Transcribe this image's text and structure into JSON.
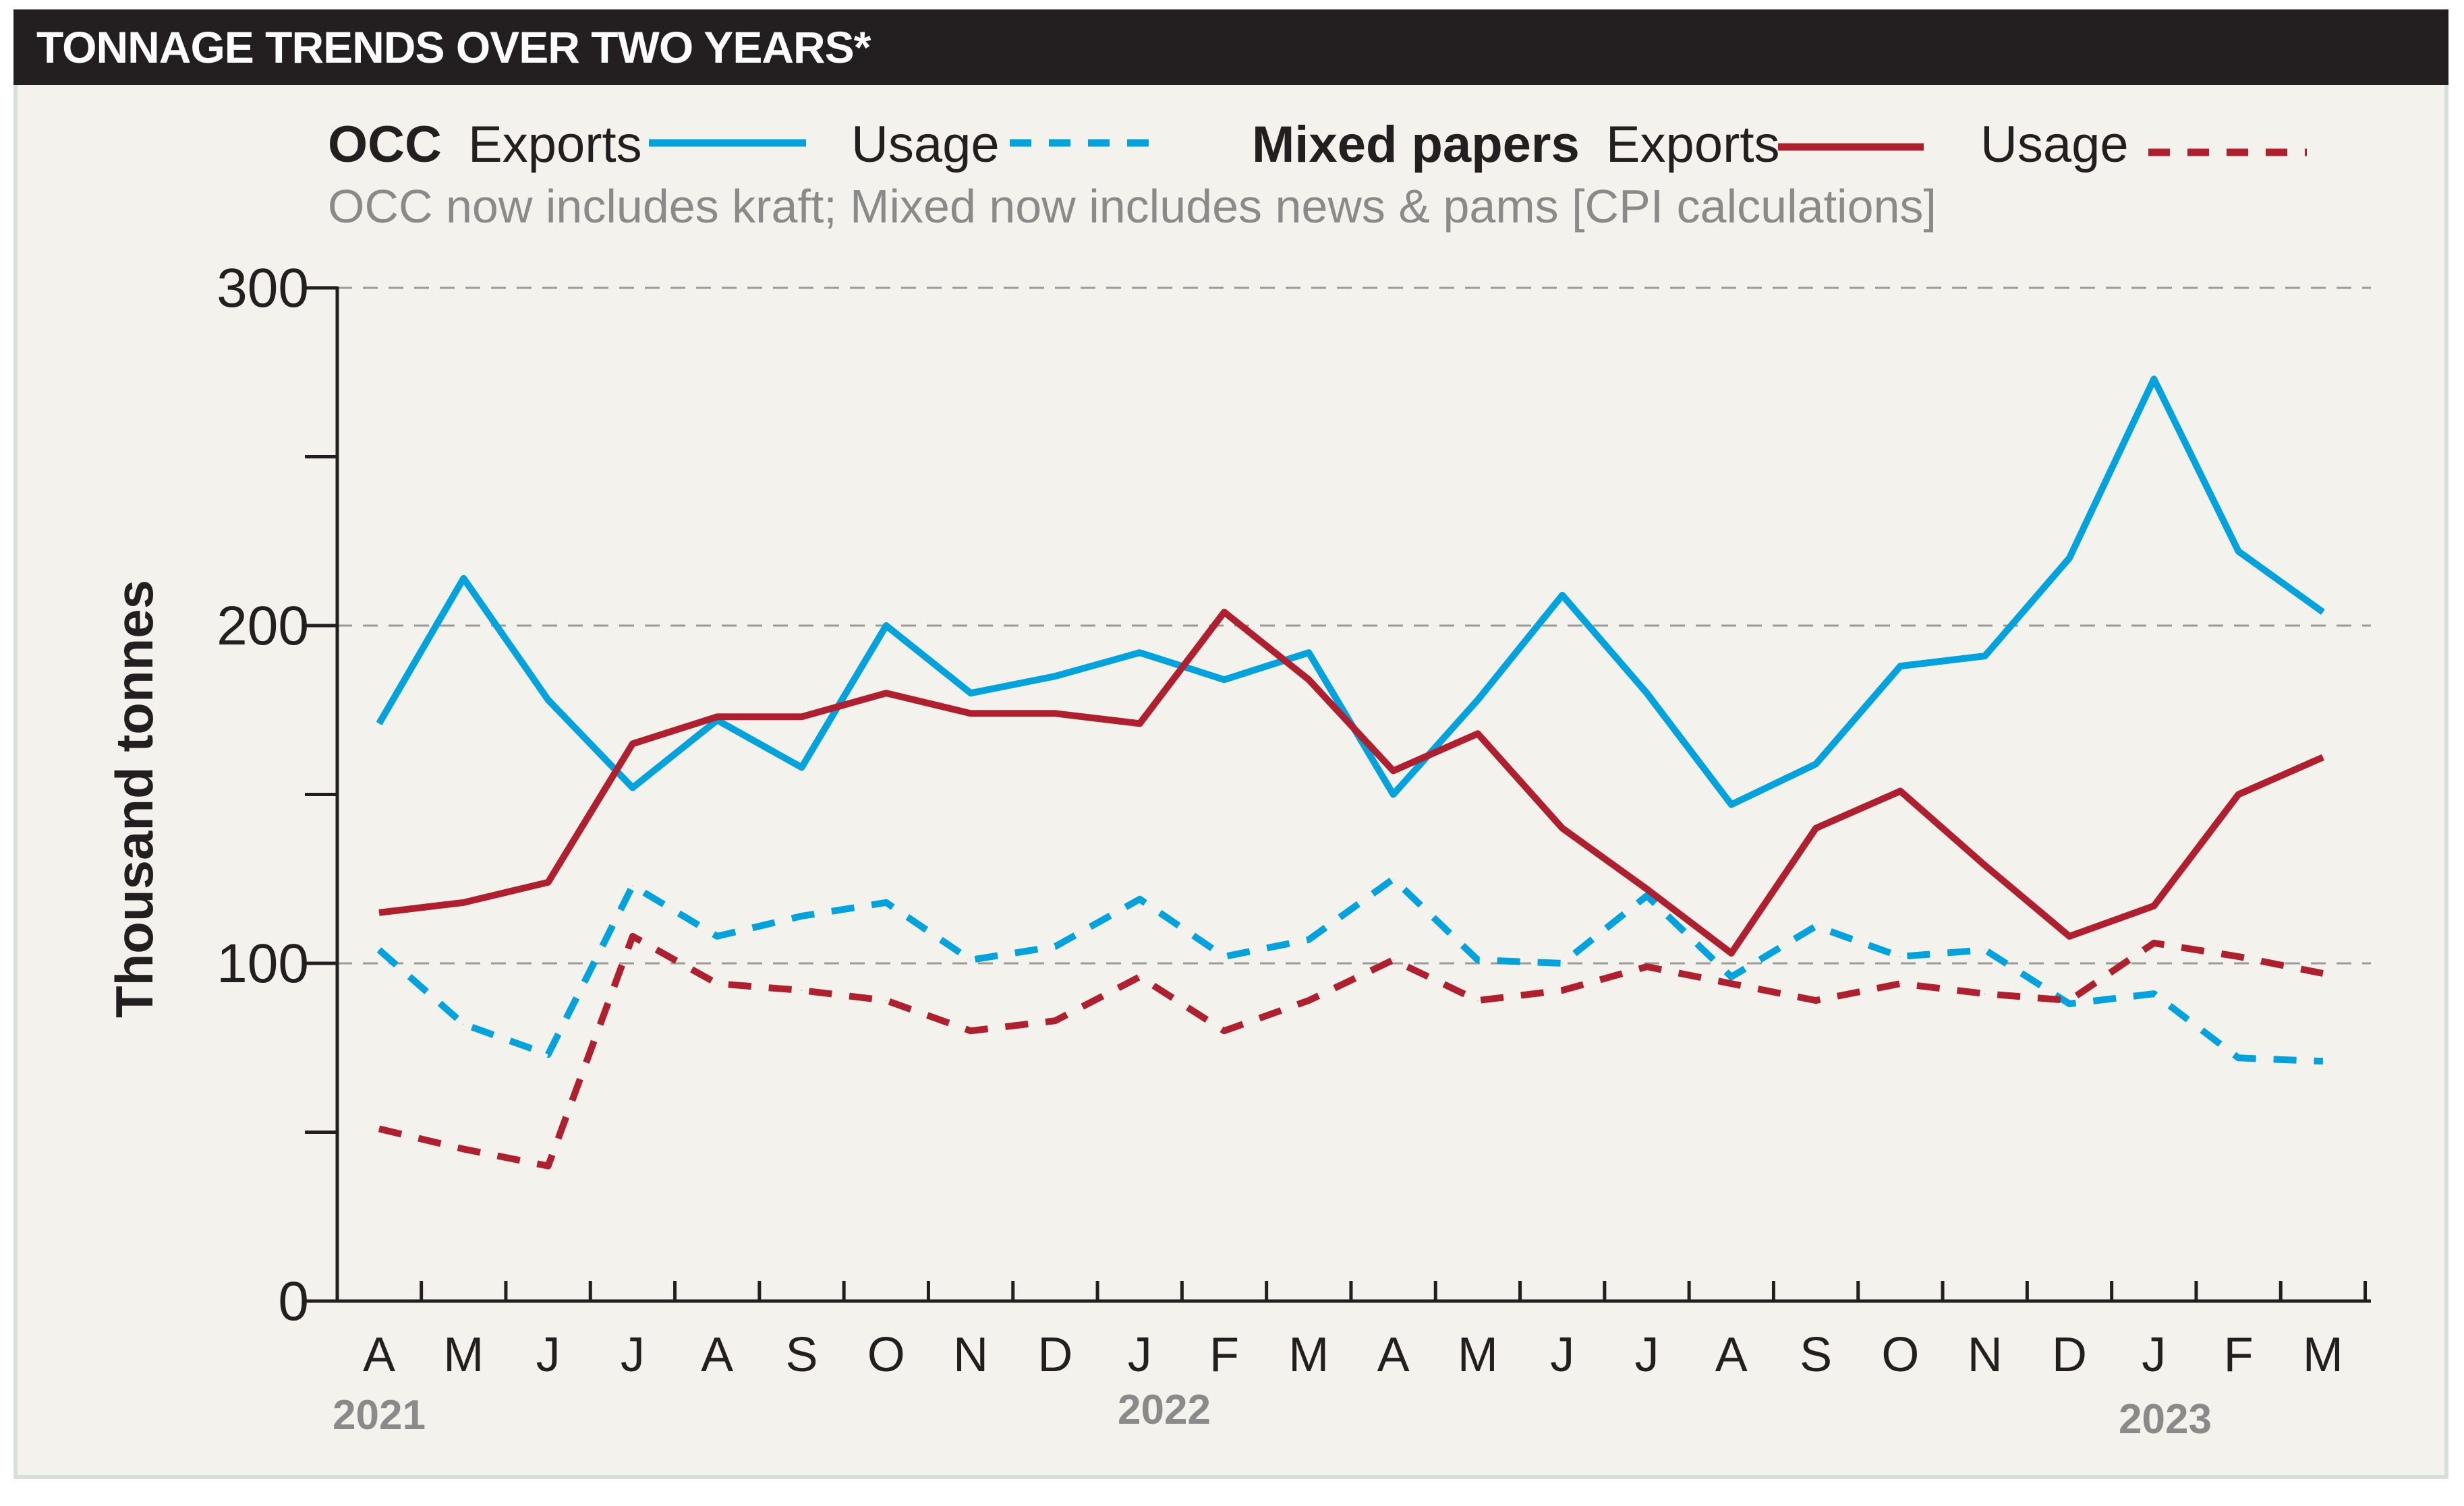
{
  "title": "TONNAGE TRENDS OVER TWO YEARS*",
  "legend": {
    "occ": "OCC",
    "mixed": "Mixed papers",
    "exports": "Exports",
    "usage": "Usage"
  },
  "note": "OCC now includes kraft; Mixed now includes news & pams [CPI calculations]",
  "colors": {
    "occ": "#00a3dd",
    "mixed": "#b01f2e",
    "axis": "#231f20",
    "grid": "#9a9a9a"
  },
  "chart_data": {
    "type": "line",
    "title": "TONNAGE TRENDS OVER TWO YEARS*",
    "xlabel": "",
    "ylabel": "Thousand tonnes",
    "ylim": [
      0,
      300
    ],
    "yticks": [
      0,
      100,
      200,
      300
    ],
    "y_minor_ticks": [
      50,
      150,
      250
    ],
    "grid": true,
    "categories": [
      "A",
      "M",
      "J",
      "J",
      "A",
      "S",
      "O",
      "N",
      "D",
      "J",
      "F",
      "M",
      "A",
      "M",
      "J",
      "J",
      "A",
      "S",
      "O",
      "N",
      "D",
      "J",
      "F",
      "M"
    ],
    "year_labels": [
      {
        "label": "2021",
        "index": 0
      },
      {
        "label": "2022",
        "index": 9
      },
      {
        "label": "2023",
        "index": 21
      }
    ],
    "series": [
      {
        "name": "OCC Exports",
        "style": "solid",
        "color": "#00a3dd",
        "values": [
          171,
          214,
          178,
          152,
          172,
          158,
          200,
          180,
          185,
          192,
          184,
          192,
          150,
          178,
          209,
          180,
          147,
          159,
          188,
          191,
          220,
          273,
          222,
          204
        ]
      },
      {
        "name": "OCC Usage",
        "style": "dashed",
        "color": "#00a3dd",
        "values": [
          104,
          82,
          73,
          123,
          108,
          114,
          118,
          101,
          105,
          119,
          102,
          107,
          125,
          101,
          100,
          120,
          96,
          111,
          102,
          104,
          88,
          91,
          72,
          71
        ]
      },
      {
        "name": "Mixed papers Exports",
        "style": "solid",
        "color": "#b01f2e",
        "values": [
          115,
          118,
          124,
          165,
          173,
          173,
          180,
          174,
          174,
          171,
          204,
          184,
          157,
          168,
          140,
          122,
          103,
          140,
          151,
          129,
          108,
          117,
          150,
          161
        ]
      },
      {
        "name": "Mixed papers Usage",
        "style": "dashed",
        "color": "#b01f2e",
        "values": [
          51,
          45,
          40,
          108,
          94,
          92,
          89,
          80,
          83,
          96,
          80,
          89,
          101,
          89,
          92,
          99,
          94,
          89,
          94,
          91,
          89,
          106,
          102,
          97
        ]
      }
    ]
  }
}
